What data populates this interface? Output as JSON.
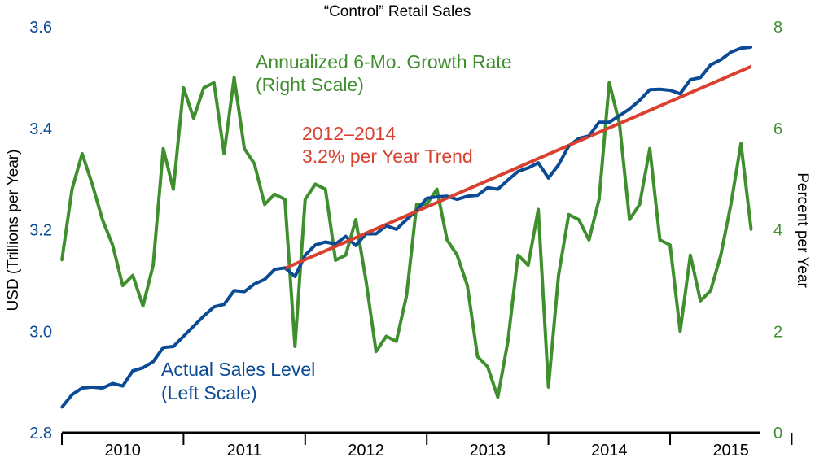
{
  "chart_data": {
    "type": "line",
    "title": "“Control” Retail Sales",
    "ylabel_left": "USD (Trillions per Year)",
    "ylabel_right": "Percent per Year",
    "ylim_left": [
      2.8,
      3.6
    ],
    "yticks_left": [
      "2.8",
      "3.0",
      "3.2",
      "3.4",
      "3.6"
    ],
    "ylim_right": [
      0,
      8
    ],
    "yticks_right": [
      "0",
      "2",
      "4",
      "6",
      "8"
    ],
    "x_start_year": 2010,
    "years": [
      "2010",
      "2011",
      "2012",
      "2013",
      "2014",
      "2015"
    ],
    "colors": {
      "sales": "#0b4a94",
      "growth": "#3f8f2f",
      "trend": "#d9402e",
      "axis": "#000000"
    },
    "series": [
      {
        "name": "Actual Sales Level",
        "axis": "left",
        "x_month_start": 0,
        "values": [
          2.85,
          2.875,
          2.888,
          2.89,
          2.888,
          2.897,
          2.892,
          2.922,
          2.928,
          2.94,
          2.968,
          2.97,
          2.99,
          3.01,
          3.03,
          3.048,
          3.053,
          3.08,
          3.078,
          3.093,
          3.102,
          3.122,
          3.125,
          3.108,
          3.15,
          3.17,
          3.176,
          3.172,
          3.187,
          3.169,
          3.192,
          3.192,
          3.208,
          3.201,
          3.22,
          3.238,
          3.262,
          3.265,
          3.266,
          3.26,
          3.266,
          3.268,
          3.283,
          3.28,
          3.298,
          3.315,
          3.322,
          3.332,
          3.302,
          3.328,
          3.365,
          3.38,
          3.385,
          3.412,
          3.412,
          3.425,
          3.438,
          3.455,
          3.476,
          3.477,
          3.475,
          3.468,
          3.496,
          3.5,
          3.525,
          3.535,
          3.55,
          3.558,
          3.56
        ]
      },
      {
        "name": "Annualized 6-Mo. Growth Rate",
        "axis": "right",
        "x_month_start": 0,
        "values": [
          3.4,
          4.8,
          5.5,
          4.9,
          4.2,
          3.7,
          2.9,
          3.1,
          2.5,
          3.3,
          5.6,
          4.8,
          6.8,
          6.2,
          6.8,
          6.9,
          5.5,
          7.0,
          5.6,
          5.3,
          4.5,
          4.7,
          4.6,
          1.7,
          4.6,
          4.9,
          4.8,
          3.4,
          3.5,
          4.2,
          3.0,
          1.6,
          1.9,
          1.8,
          2.7,
          4.5,
          4.5,
          4.8,
          3.8,
          3.5,
          2.9,
          1.5,
          1.3,
          0.7,
          1.8,
          3.5,
          3.3,
          4.4,
          0.9,
          3.1,
          4.3,
          4.2,
          3.8,
          4.6,
          6.9,
          6.1,
          4.2,
          4.5,
          5.6,
          3.8,
          3.7,
          2.0,
          3.5,
          2.6,
          2.8,
          3.5,
          4.5,
          5.7,
          4.0
        ]
      },
      {
        "name": "2012–2014 3.2% per Year Trend",
        "axis": "left",
        "x": [
          22,
          68
        ],
        "values": [
          3.124,
          3.522
        ]
      }
    ],
    "annotations": {
      "growth_line1": "Annualized 6-Mo. Growth Rate",
      "growth_line2": "(Right Scale)",
      "trend_line1": "2012–2014",
      "trend_line2": "3.2% per Year Trend",
      "sales_line1": "Actual Sales Level",
      "sales_line2": "(Left Scale)"
    }
  }
}
